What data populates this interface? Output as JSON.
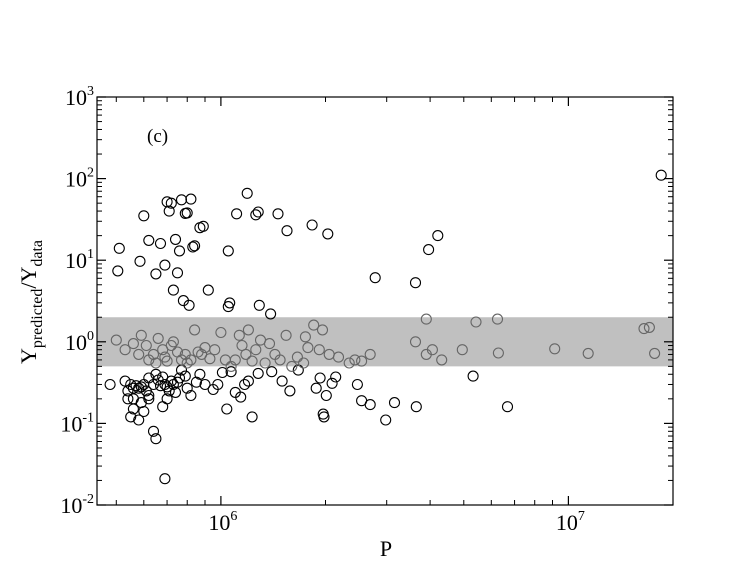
{
  "chart_data": {
    "type": "scatter",
    "panel_label": "(c)",
    "xlabel": "P",
    "ylabel": {
      "base": "Y",
      "sub": "predicted",
      "sep": "/Y",
      "sub2": "data"
    },
    "xscale": "log",
    "yscale": "log",
    "xlim": [
      440000,
      20000000
    ],
    "ylim": [
      0.01,
      1000
    ],
    "x_ticks": [
      {
        "value": 1000000,
        "base": "10",
        "exp": "6"
      },
      {
        "value": 10000000,
        "base": "10",
        "exp": "7"
      }
    ],
    "y_ticks": [
      {
        "value": 0.01,
        "base": "10",
        "exp": "-2"
      },
      {
        "value": 0.1,
        "base": "10",
        "exp": "-1"
      },
      {
        "value": 1,
        "base": "10",
        "exp": "0"
      },
      {
        "value": 10,
        "base": "10",
        "exp": "1"
      },
      {
        "value": 100,
        "base": "10",
        "exp": "2"
      },
      {
        "value": 1000,
        "base": "10",
        "exp": "3"
      }
    ],
    "band": {
      "ymin": 0.5,
      "ymax": 2.0,
      "color": "#c0c0c0"
    },
    "colors": {
      "marker": "#000000",
      "marker_in_band": "#666666",
      "axis": "#000000"
    },
    "grid": false,
    "legend": "none",
    "points": [
      [
        510000,
        14
      ],
      [
        505000,
        7.4
      ],
      [
        585000,
        9.7
      ],
      [
        600000,
        35
      ],
      [
        620000,
        17.5
      ],
      [
        650000,
        6.8
      ],
      [
        670000,
        16
      ],
      [
        690000,
        8.7
      ],
      [
        700000,
        52
      ],
      [
        710000,
        40
      ],
      [
        720000,
        50
      ],
      [
        730000,
        4.3
      ],
      [
        740000,
        18
      ],
      [
        750000,
        7
      ],
      [
        760000,
        13
      ],
      [
        770000,
        55
      ],
      [
        780000,
        3.2
      ],
      [
        790000,
        37.5
      ],
      [
        800000,
        38
      ],
      [
        810000,
        2.8
      ],
      [
        820000,
        56
      ],
      [
        830000,
        14.5
      ],
      [
        840000,
        15
      ],
      [
        870000,
        25
      ],
      [
        890000,
        26
      ],
      [
        920000,
        4.3
      ],
      [
        1050000,
        2.7
      ],
      [
        1060000,
        3.0
      ],
      [
        1050000,
        13
      ],
      [
        1110000,
        37
      ],
      [
        1190000,
        66
      ],
      [
        1260000,
        36
      ],
      [
        1280000,
        39
      ],
      [
        1290000,
        2.8
      ],
      [
        1390000,
        2.2
      ],
      [
        1460000,
        37
      ],
      [
        1550000,
        23
      ],
      [
        1830000,
        27
      ],
      [
        2030000,
        21
      ],
      [
        2780000,
        6.1
      ],
      [
        3630000,
        5.3
      ],
      [
        3960000,
        13.5
      ],
      [
        4210000,
        20
      ],
      [
        18500000,
        110
      ],
      [
        480000,
        0.3
      ],
      [
        530000,
        0.33
      ],
      [
        540000,
        0.25
      ],
      [
        550000,
        0.3
      ],
      [
        560000,
        0.27
      ],
      [
        560000,
        0.2
      ],
      [
        570000,
        0.29
      ],
      [
        580000,
        0.27
      ],
      [
        590000,
        0.28
      ],
      [
        600000,
        0.3
      ],
      [
        610000,
        0.25
      ],
      [
        620000,
        0.36
      ],
      [
        620000,
        0.2
      ],
      [
        640000,
        0.3
      ],
      [
        650000,
        0.4
      ],
      [
        660000,
        0.34
      ],
      [
        670000,
        0.29
      ],
      [
        680000,
        0.37
      ],
      [
        690000,
        0.3
      ],
      [
        700000,
        0.28
      ],
      [
        710000,
        0.25
      ],
      [
        720000,
        0.33
      ],
      [
        730000,
        0.3
      ],
      [
        740000,
        0.24
      ],
      [
        750000,
        0.32
      ],
      [
        760000,
        0.36
      ],
      [
        770000,
        0.45
      ],
      [
        790000,
        0.38
      ],
      [
        800000,
        0.27
      ],
      [
        820000,
        0.22
      ],
      [
        850000,
        0.32
      ],
      [
        870000,
        0.4
      ],
      [
        900000,
        0.3
      ],
      [
        950000,
        0.26
      ],
      [
        980000,
        0.3
      ],
      [
        1010000,
        0.42
      ],
      [
        1040000,
        0.15
      ],
      [
        1070000,
        0.43
      ],
      [
        1100000,
        0.24
      ],
      [
        1140000,
        0.21
      ],
      [
        1170000,
        0.3
      ],
      [
        1200000,
        0.33
      ],
      [
        1230000,
        0.12
      ],
      [
        1280000,
        0.41
      ],
      [
        1400000,
        0.43
      ],
      [
        1500000,
        0.33
      ],
      [
        1580000,
        0.25
      ],
      [
        1670000,
        0.45
      ],
      [
        1880000,
        0.27
      ],
      [
        1930000,
        0.36
      ],
      [
        1970000,
        0.13
      ],
      [
        1980000,
        0.12
      ],
      [
        2010000,
        0.22
      ],
      [
        2090000,
        0.31
      ],
      [
        2140000,
        0.37
      ],
      [
        2470000,
        0.3
      ],
      [
        2540000,
        0.19
      ],
      [
        2690000,
        0.17
      ],
      [
        2980000,
        0.11
      ],
      [
        3160000,
        0.18
      ],
      [
        3650000,
        0.16
      ],
      [
        5320000,
        0.38
      ],
      [
        6680000,
        0.16
      ],
      [
        540000,
        0.2
      ],
      [
        560000,
        0.15
      ],
      [
        590000,
        0.18
      ],
      [
        600000,
        0.14
      ],
      [
        620000,
        0.22
      ],
      [
        640000,
        0.08
      ],
      [
        650000,
        0.065
      ],
      [
        680000,
        0.16
      ],
      [
        690000,
        0.021
      ],
      [
        700000,
        0.2
      ],
      [
        550000,
        0.12
      ],
      [
        580000,
        0.11
      ],
      [
        500000,
        1.05
      ],
      [
        530000,
        0.8
      ],
      [
        560000,
        0.95
      ],
      [
        580000,
        0.7
      ],
      [
        590000,
        1.2
      ],
      [
        610000,
        0.9
      ],
      [
        620000,
        0.6
      ],
      [
        640000,
        0.7
      ],
      [
        650000,
        0.55
      ],
      [
        660000,
        1.1
      ],
      [
        680000,
        0.8
      ],
      [
        690000,
        0.65
      ],
      [
        700000,
        0.58
      ],
      [
        720000,
        0.9
      ],
      [
        730000,
        1.0
      ],
      [
        750000,
        0.75
      ],
      [
        770000,
        0.6
      ],
      [
        790000,
        0.7
      ],
      [
        800000,
        0.55
      ],
      [
        820000,
        0.6
      ],
      [
        840000,
        1.4
      ],
      [
        860000,
        0.75
      ],
      [
        880000,
        0.7
      ],
      [
        900000,
        0.85
      ],
      [
        930000,
        0.62
      ],
      [
        960000,
        0.8
      ],
      [
        1000000,
        1.3
      ],
      [
        1030000,
        0.6
      ],
      [
        1070000,
        0.5
      ],
      [
        1100000,
        0.6
      ],
      [
        1130000,
        1.2
      ],
      [
        1150000,
        0.9
      ],
      [
        1180000,
        0.7
      ],
      [
        1200000,
        1.4
      ],
      [
        1230000,
        0.58
      ],
      [
        1260000,
        0.8
      ],
      [
        1300000,
        1.05
      ],
      [
        1340000,
        0.55
      ],
      [
        1380000,
        0.95
      ],
      [
        1430000,
        0.7
      ],
      [
        1480000,
        0.6
      ],
      [
        1540000,
        1.2
      ],
      [
        1600000,
        0.5
      ],
      [
        1660000,
        0.65
      ],
      [
        1730000,
        0.55
      ],
      [
        1780000,
        0.85
      ],
      [
        1850000,
        1.6
      ],
      [
        1920000,
        0.8
      ],
      [
        1960000,
        1.4
      ],
      [
        2050000,
        0.7
      ],
      [
        2180000,
        0.65
      ],
      [
        2340000,
        0.55
      ],
      [
        2430000,
        0.6
      ],
      [
        2540000,
        0.58
      ],
      [
        2690000,
        0.7
      ],
      [
        3630000,
        1.0
      ],
      [
        3900000,
        0.7
      ],
      [
        4060000,
        0.8
      ],
      [
        4320000,
        0.6
      ],
      [
        4950000,
        0.8
      ],
      [
        5420000,
        1.75
      ],
      [
        6290000,
        0.73
      ],
      [
        6250000,
        1.9
      ],
      [
        9130000,
        0.82
      ],
      [
        11400000,
        0.72
      ],
      [
        16500000,
        1.45
      ],
      [
        17100000,
        1.5
      ],
      [
        17700000,
        0.72
      ],
      [
        3900000,
        1.9
      ],
      [
        1750000,
        1.15
      ]
    ]
  }
}
